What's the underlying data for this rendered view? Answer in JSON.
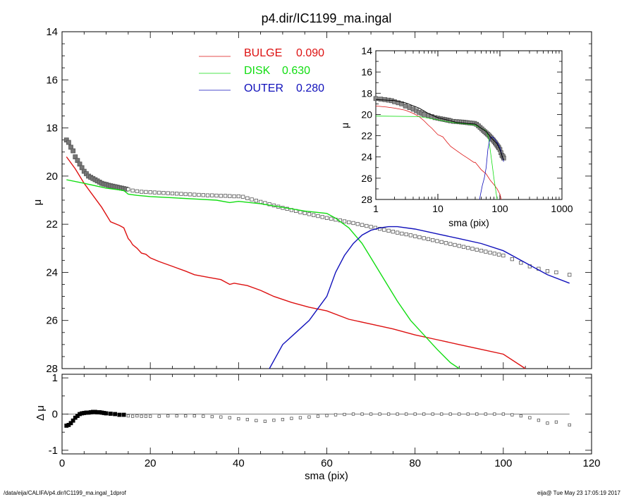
{
  "footer": {
    "left": "/data/eija/CALIFA/p4.dir/IC1199_ma.ingal_1dprof",
    "right": "eija@  Tue May 23 17:05:19 2017"
  },
  "chart_data": [
    {
      "id": "main",
      "type": "line",
      "title": "p4.dir/IC1199_ma.ingal",
      "xlabel": "",
      "ylabel": "μ",
      "xlim": [
        0,
        120
      ],
      "ylim": [
        14,
        28
      ],
      "y_inverted": true,
      "xticks": [
        0,
        20,
        40,
        60,
        80,
        100,
        120
      ],
      "yticks": [
        14,
        16,
        18,
        20,
        22,
        24,
        26,
        28
      ],
      "legend": {
        "placement": "top-center",
        "entries": [
          {
            "label": "BULGE",
            "value": "0.090",
            "color": "#dd1111"
          },
          {
            "label": "DISK",
            "value": "0.630",
            "color": "#11dd11"
          },
          {
            "label": "OUTER",
            "value": "0.280",
            "color": "#1111bb"
          }
        ]
      },
      "series": [
        {
          "name": "BULGE",
          "color": "#dd1111",
          "x": [
            1,
            3,
            5,
            7,
            9,
            11,
            13,
            14,
            15,
            15.5,
            16,
            17,
            18,
            19,
            20,
            22,
            25,
            28,
            30,
            33,
            36,
            38,
            39,
            42,
            45,
            48,
            52,
            56,
            60,
            65,
            70,
            75,
            80,
            85,
            90,
            95,
            100,
            105
          ],
          "y": [
            19.2,
            19.7,
            20.3,
            20.8,
            21.3,
            21.9,
            22.05,
            22.15,
            22.6,
            22.7,
            22.85,
            23.0,
            23.2,
            23.25,
            23.4,
            23.55,
            23.75,
            23.95,
            24.1,
            24.2,
            24.3,
            24.5,
            24.45,
            24.55,
            24.75,
            25.0,
            25.25,
            25.45,
            25.6,
            25.95,
            26.15,
            26.35,
            26.6,
            26.8,
            27.0,
            27.2,
            27.4,
            28.0
          ]
        },
        {
          "name": "DISK",
          "color": "#11dd11",
          "x": [
            1,
            5,
            10,
            14,
            15,
            17,
            20,
            25,
            30,
            35,
            38,
            40,
            45,
            50,
            55,
            60,
            62,
            65,
            68,
            70,
            73,
            76,
            79,
            82,
            85,
            88,
            90
          ],
          "y": [
            20.15,
            20.3,
            20.5,
            20.6,
            20.75,
            20.8,
            20.85,
            20.9,
            20.95,
            21.0,
            21.1,
            21.05,
            21.15,
            21.3,
            21.45,
            21.55,
            21.75,
            22.15,
            22.8,
            23.4,
            24.3,
            25.2,
            26.0,
            26.6,
            27.2,
            27.75,
            28.0
          ]
        },
        {
          "name": "OUTER",
          "color": "#1111bb",
          "x": [
            47,
            50,
            53,
            56,
            58,
            60,
            62,
            64,
            66,
            68,
            70,
            72,
            74,
            76,
            80,
            85,
            90,
            95,
            100,
            105,
            110,
            115
          ],
          "y": [
            28.0,
            27.0,
            26.5,
            26.0,
            25.5,
            25.0,
            24.0,
            23.3,
            22.8,
            22.45,
            22.25,
            22.15,
            22.1,
            22.1,
            22.2,
            22.4,
            22.6,
            22.8,
            23.1,
            23.6,
            24.1,
            24.45
          ]
        },
        {
          "name": "",
          "color": "#000000",
          "x": [
            1,
            3,
            5,
            7,
            9,
            11,
            13,
            15,
            17,
            20,
            25,
            30,
            35,
            38,
            40,
            45,
            50,
            55,
            60,
            65,
            70,
            75,
            80,
            85,
            90,
            95,
            100,
            105,
            110,
            115
          ],
          "y": [
            18.55,
            19.25,
            19.75,
            20.05,
            20.25,
            20.4,
            20.45,
            20.55,
            20.7,
            20.75,
            20.8,
            20.85,
            20.9,
            20.95,
            20.9,
            21.05,
            21.3,
            21.5,
            21.6,
            21.85,
            22.1,
            22.3,
            22.45,
            22.6,
            22.75,
            22.95,
            23.3,
            23.7,
            24.0,
            24.3
          ]
        }
      ],
      "observed": {
        "marker": "square",
        "x": [
          1,
          1.5,
          2,
          2.5,
          3,
          3.5,
          4,
          4.5,
          5,
          5.5,
          6,
          6.5,
          7,
          7.5,
          8,
          8.5,
          9,
          9.5,
          10,
          10.5,
          11,
          11.5,
          12,
          12.5,
          13,
          13.5,
          14,
          14.5,
          15,
          16,
          17,
          18,
          19,
          20,
          21,
          22,
          23,
          24,
          25,
          26,
          27,
          28,
          29,
          30,
          31,
          32,
          33,
          34,
          35,
          36,
          37,
          38,
          39,
          40,
          41,
          42,
          43,
          44,
          45,
          46,
          47,
          48,
          49,
          50,
          51,
          52,
          53,
          54,
          55,
          56,
          57,
          58,
          59,
          60,
          61,
          62,
          63,
          64,
          65,
          66,
          67,
          68,
          69,
          70,
          71,
          72,
          73,
          74,
          75,
          76,
          77,
          78,
          79,
          80,
          81,
          82,
          83,
          84,
          85,
          86,
          87,
          88,
          89,
          90,
          91,
          92,
          93,
          94,
          95,
          96,
          97,
          98,
          99,
          100,
          102,
          104,
          106,
          108,
          110,
          112,
          115
        ],
        "y": [
          18.5,
          18.6,
          18.8,
          18.95,
          19.2,
          19.35,
          19.5,
          19.65,
          19.8,
          19.9,
          20.0,
          20.05,
          20.1,
          20.15,
          20.2,
          20.25,
          20.3,
          20.33,
          20.35,
          20.38,
          20.4,
          20.42,
          20.44,
          20.46,
          20.48,
          20.5,
          20.52,
          20.54,
          20.55,
          20.6,
          20.63,
          20.65,
          20.66,
          20.67,
          20.68,
          20.69,
          20.7,
          20.71,
          20.72,
          20.73,
          20.74,
          20.75,
          20.76,
          20.77,
          20.78,
          20.79,
          20.8,
          20.8,
          20.81,
          20.82,
          20.82,
          20.83,
          20.84,
          20.84,
          20.86,
          20.92,
          20.97,
          21.02,
          21.07,
          21.12,
          21.17,
          21.22,
          21.27,
          21.32,
          21.36,
          21.41,
          21.45,
          21.5,
          21.54,
          21.58,
          21.62,
          21.66,
          21.7,
          21.74,
          21.77,
          21.81,
          21.84,
          21.88,
          21.92,
          21.95,
          21.99,
          22.03,
          22.07,
          22.11,
          22.15,
          22.19,
          22.23,
          22.27,
          22.31,
          22.35,
          22.39,
          22.42,
          22.46,
          22.5,
          22.54,
          22.58,
          22.62,
          22.66,
          22.7,
          22.74,
          22.78,
          22.82,
          22.86,
          22.9,
          22.94,
          22.98,
          23.02,
          23.06,
          23.1,
          23.14,
          23.18,
          23.22,
          23.26,
          23.3,
          23.45,
          23.6,
          23.75,
          23.85,
          23.95,
          24.0,
          24.1
        ]
      }
    },
    {
      "id": "residual",
      "type": "scatter",
      "xlabel": "sma (pix)",
      "ylabel": "Δ μ",
      "xlim": [
        0,
        120
      ],
      "ylim": [
        -1.1,
        1.1
      ],
      "xticks": [
        0,
        20,
        40,
        60,
        80,
        100,
        120
      ],
      "yticks": [
        -1,
        0,
        1
      ],
      "zero_line": {
        "from": 1,
        "to": 115
      },
      "series": [
        {
          "name": "",
          "x": [
            1,
            1.5,
            2,
            2.5,
            3,
            3.5,
            4,
            4.5,
            5,
            5.5,
            6,
            6.5,
            7,
            7.5,
            8,
            8.5,
            9,
            9.5,
            10,
            11,
            12,
            13,
            14,
            15,
            16,
            17,
            18,
            19,
            20,
            22,
            24,
            26,
            28,
            30,
            32,
            34,
            36,
            38,
            40,
            42,
            44,
            46,
            48,
            50,
            52,
            54,
            56,
            58,
            60,
            62,
            64,
            66,
            68,
            70,
            72,
            74,
            76,
            78,
            80,
            82,
            84,
            86,
            88,
            90,
            92,
            94,
            96,
            98,
            100,
            102,
            104,
            106,
            108,
            110,
            112,
            115
          ],
          "y": [
            -0.32,
            -0.3,
            -0.25,
            -0.18,
            -0.1,
            -0.05,
            0.0,
            0.02,
            0.03,
            0.04,
            0.04,
            0.05,
            0.06,
            0.06,
            0.05,
            0.05,
            0.04,
            0.03,
            0.02,
            0.01,
            0.0,
            -0.02,
            -0.02,
            -0.05,
            -0.06,
            -0.05,
            -0.06,
            -0.06,
            -0.06,
            -0.06,
            -0.05,
            -0.05,
            -0.05,
            -0.05,
            -0.06,
            -0.07,
            -0.08,
            -0.1,
            -0.13,
            -0.15,
            -0.18,
            -0.2,
            -0.17,
            -0.15,
            -0.12,
            -0.1,
            -0.08,
            -0.06,
            -0.04,
            -0.02,
            -0.01,
            0.0,
            0.0,
            0.0,
            0.0,
            0.0,
            0.0,
            0.0,
            0.0,
            0.0,
            0.0,
            0.0,
            0.0,
            0.0,
            0.0,
            0.0,
            0.0,
            0.0,
            0.0,
            -0.02,
            -0.05,
            -0.1,
            -0.17,
            -0.25,
            -0.22,
            -0.3
          ]
        }
      ]
    },
    {
      "id": "inset",
      "type": "line",
      "xlabel": "sma (pix)",
      "ylabel": "μ",
      "x_log": true,
      "xlim": [
        1,
        1000
      ],
      "ylim": [
        14,
        28
      ],
      "y_inverted": true,
      "xticks": [
        1,
        10,
        100,
        1000
      ],
      "yticks": [
        14,
        16,
        18,
        20,
        22,
        24,
        26,
        28
      ],
      "series": [
        {
          "name": "BULGE",
          "color": "#dd1111",
          "x": [
            1,
            1.5,
            2,
            3,
            4,
            5,
            6,
            7,
            8,
            10,
            12,
            14,
            16,
            20,
            25,
            30,
            38,
            40,
            50,
            60,
            70,
            80,
            90,
            100,
            105
          ],
          "y": [
            19.2,
            19.3,
            19.4,
            19.6,
            19.9,
            20.2,
            20.6,
            21.0,
            21.3,
            21.9,
            22.1,
            22.6,
            23.0,
            23.4,
            23.8,
            24.1,
            24.5,
            24.5,
            25.2,
            25.6,
            26.2,
            26.6,
            27.0,
            27.5,
            28.0
          ]
        },
        {
          "name": "DISK",
          "color": "#11dd11",
          "x": [
            1,
            5,
            10,
            15,
            20,
            30,
            40,
            50,
            60,
            65,
            70,
            75,
            80,
            85,
            90
          ],
          "y": [
            20.15,
            20.2,
            20.5,
            20.7,
            20.8,
            20.9,
            21.0,
            21.3,
            21.55,
            22.1,
            23.4,
            24.7,
            26.0,
            27.0,
            28.0
          ]
        },
        {
          "name": "OUTER",
          "color": "#1111bb",
          "x": [
            47,
            52,
            56,
            60,
            64,
            68,
            72,
            76,
            85,
            100,
            115
          ],
          "y": [
            28.0,
            26.7,
            26.0,
            25.0,
            23.3,
            22.45,
            22.15,
            22.1,
            22.4,
            23.1,
            24.45
          ]
        },
        {
          "name": "",
          "color": "#000000",
          "x": [
            1,
            2,
            3,
            5,
            7,
            10,
            15,
            20,
            30,
            40,
            50,
            60,
            70,
            80,
            90,
            100,
            115
          ],
          "y": [
            18.6,
            18.7,
            18.9,
            19.4,
            19.9,
            20.3,
            20.55,
            20.75,
            20.85,
            20.9,
            21.3,
            21.6,
            22.1,
            22.45,
            22.75,
            23.3,
            24.3
          ]
        }
      ],
      "observed": {
        "marker": "square",
        "x": [
          1,
          1.2,
          1.4,
          1.6,
          1.8,
          2,
          2.3,
          2.6,
          3,
          3.5,
          4,
          4.5,
          5,
          5.5,
          6,
          7,
          8,
          9,
          10,
          11,
          12,
          13,
          14,
          15,
          16,
          18,
          20,
          22,
          24,
          26,
          28,
          30,
          33,
          36,
          39,
          42,
          45,
          48,
          51,
          54,
          57,
          60,
          63,
          66,
          69,
          72,
          75,
          78,
          81,
          84,
          87,
          90,
          93,
          96,
          100,
          104,
          108,
          112,
          115
        ],
        "y": [
          18.5,
          18.55,
          18.6,
          18.65,
          18.7,
          18.8,
          18.9,
          19.0,
          19.2,
          19.35,
          19.5,
          19.65,
          19.8,
          19.9,
          20.0,
          20.1,
          20.2,
          20.3,
          20.35,
          20.4,
          20.44,
          20.48,
          20.52,
          20.55,
          20.6,
          20.65,
          20.67,
          20.69,
          20.71,
          20.73,
          20.75,
          20.77,
          20.8,
          20.82,
          20.84,
          20.92,
          21.07,
          21.22,
          21.36,
          21.5,
          21.62,
          21.74,
          21.84,
          21.95,
          22.07,
          22.19,
          22.31,
          22.42,
          22.54,
          22.66,
          22.78,
          22.9,
          23.02,
          23.14,
          23.3,
          23.6,
          23.85,
          23.95,
          24.1
        ]
      }
    }
  ]
}
